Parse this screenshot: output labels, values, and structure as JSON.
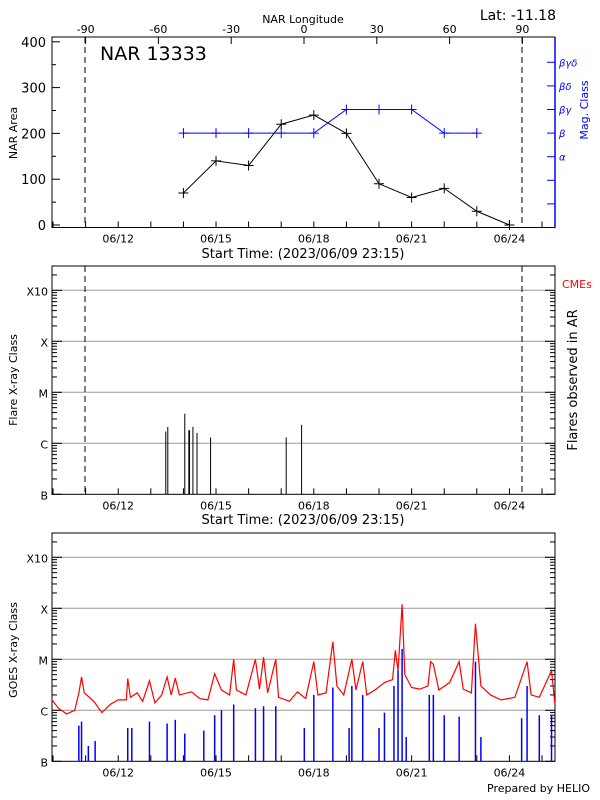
{
  "header": {
    "lat_label": "Lat: -11.18",
    "region_label": "NAR 13333",
    "footer": "Prepared by HELIO"
  },
  "colors": {
    "area": "#000000",
    "mag_class": "#0000ff",
    "goes_long": "#ff0000",
    "goes_short": "#0000ff",
    "cme": "#ff0000",
    "grid": "#999999"
  },
  "chart_data": [
    {
      "type": "line",
      "title": "NAR 13333",
      "xlabel": "Start Time: (2023/06/09 23:15)",
      "ylabel": "NAR Area",
      "y2label": "Mag. Class",
      "top_axis_label": "NAR Longitude",
      "top_axis_ticks": [
        "-90",
        "-60",
        "-30",
        "0",
        "30",
        "60",
        "90"
      ],
      "longitude_limb_markers": [
        "-90",
        "90"
      ],
      "x_range": [
        "06/09 23:15",
        "06/25 09:40"
      ],
      "x_tick_labels": [
        "06/12",
        "06/15",
        "06/18",
        "06/21",
        "06/24"
      ],
      "ylim": [
        -5,
        410
      ],
      "y_ticks": [
        "0",
        "100",
        "200",
        "300",
        "400"
      ],
      "y2_ticks": [
        "",
        "",
        "α",
        "β",
        "βγ",
        "βδ",
        "βγδ"
      ],
      "series": [
        {
          "name": "NAR Area",
          "x": [
            "06/14",
            "06/15",
            "06/16",
            "06/17",
            "06/18",
            "06/19",
            "06/20",
            "06/21",
            "06/22",
            "06/23",
            "06/24"
          ],
          "values": [
            70,
            140,
            130,
            220,
            240,
            200,
            90,
            60,
            80,
            30,
            0
          ]
        },
        {
          "name": "Mag. Class",
          "x": [
            "06/14",
            "06/15",
            "06/16",
            "06/17",
            "06/18",
            "06/19",
            "06/20",
            "06/21",
            "06/22",
            "06/23"
          ],
          "values": [
            "β",
            "β",
            "β",
            "β",
            "β",
            "βγ",
            "βγ",
            "βγ",
            "β",
            "β"
          ]
        }
      ]
    },
    {
      "type": "bar",
      "xlabel": "Start Time: (2023/06/09 23:15)",
      "ylabel": "Flare X-ray Class",
      "y2label": "Flares observed in AR",
      "cme_label": "CMEs",
      "y_scale": "log",
      "y_ticks": [
        "B",
        "C",
        "M",
        "X",
        "X10"
      ],
      "x_tick_labels": [
        "06/12",
        "06/15",
        "06/18",
        "06/21",
        "06/24"
      ],
      "grid": true,
      "flares": [
        [
          "06/13 11:00",
          "C1.7"
        ],
        [
          "06/13 12:30",
          "C2.1"
        ],
        [
          "06/14 01:00",
          "C3.8"
        ],
        [
          "06/14 04:00",
          "C1.8"
        ],
        [
          "06/14 04:30",
          "C1.8"
        ],
        [
          "06/14 07:00",
          "C2.1"
        ],
        [
          "06/14 10:00",
          "C1.6"
        ],
        [
          "06/14 20:00",
          "C1.3"
        ],
        [
          "06/17 03:40",
          "C1.3"
        ],
        [
          "06/17 15:00",
          "C2.3"
        ]
      ]
    },
    {
      "type": "line",
      "xlabel": "",
      "ylabel": "GOES X-ray Class",
      "y_scale": "log",
      "y_ticks": [
        "B",
        "C",
        "M",
        "X",
        "X10"
      ],
      "x_tick_labels": [
        "06/12",
        "06/15",
        "06/18",
        "06/21",
        "06/24"
      ],
      "grid": true,
      "series": [
        {
          "channel": "long",
          "points": [
            [
              "06/09 23:15",
              "C1.6"
            ],
            [
              "06/10 04:00",
              "C1.1"
            ],
            [
              "06/10 10:00",
              "B8.5"
            ],
            [
              "06/10 16:00",
              "C1.0"
            ],
            [
              "06/10 19:00",
              "C2.2"
            ],
            [
              "06/10 21:00",
              "C4.5"
            ],
            [
              "06/10 23:00",
              "C2.2"
            ],
            [
              "06/11 06:00",
              "C1.5"
            ],
            [
              "06/11 12:00",
              "B9"
            ],
            [
              "06/11 18:00",
              "C1.3"
            ],
            [
              "06/12 00:00",
              "C1.6"
            ],
            [
              "06/12 06:00",
              "C1.6"
            ],
            [
              "06/12 07:00",
              "C4.2"
            ],
            [
              "06/12 09:00",
              "C1.8"
            ],
            [
              "06/12 14:00",
              "C2.2"
            ],
            [
              "06/12 18:00",
              "C1.5"
            ],
            [
              "06/12 23:00",
              "C3.8"
            ],
            [
              "06/13 03:00",
              "C1.4"
            ],
            [
              "06/13 08:00",
              "C2"
            ],
            [
              "06/13 12:00",
              "C4.5"
            ],
            [
              "06/13 15:00",
              "C2"
            ],
            [
              "06/13 18:00",
              "C4.3"
            ],
            [
              "06/13 21:00",
              "C2"
            ],
            [
              "06/14 06:00",
              "C2.3"
            ],
            [
              "06/14 12:00",
              "C1.7"
            ],
            [
              "06/14 18:00",
              "C1.6"
            ],
            [
              "06/14 23:00",
              "C5.2"
            ],
            [
              "06/15 04:00",
              "C2.5"
            ],
            [
              "06/15 10:00",
              "C2"
            ],
            [
              "06/15 13:00",
              "M1.0"
            ],
            [
              "06/15 15:00",
              "C2.5"
            ],
            [
              "06/15 22:00",
              "C2.0"
            ],
            [
              "06/16 05:00",
              "M1.0"
            ],
            [
              "06/16 08:00",
              "C2.6"
            ],
            [
              "06/16 11:00",
              "M1.1"
            ],
            [
              "06/16 14:00",
              "C2.2"
            ],
            [
              "06/16 20:00",
              "M1.0"
            ],
            [
              "06/16 22:00",
              "C1.8"
            ],
            [
              "06/17 06:00",
              "C1.5"
            ],
            [
              "06/17 12:00",
              "C2.3"
            ],
            [
              "06/17 18:00",
              "C1.7"
            ],
            [
              "06/18 00:00",
              "C9"
            ],
            [
              "06/18 03:00",
              "C2"
            ],
            [
              "06/18 09:00",
              "C2.2"
            ],
            [
              "06/18 14:00",
              "M2.2"
            ],
            [
              "06/18 17:00",
              "C3"
            ],
            [
              "06/18 22:00",
              "C2"
            ],
            [
              "06/19 04:00",
              "M1.0"
            ],
            [
              "06/19 07:00",
              "C2.5"
            ],
            [
              "06/19 12:00",
              "C9"
            ],
            [
              "06/19 15:00",
              "C2"
            ],
            [
              "06/19 21:00",
              "C2.5"
            ],
            [
              "06/20 04:00",
              "C3.5"
            ],
            [
              "06/20 10:00",
              "C4"
            ],
            [
              "06/20 12:00",
              "M1.5"
            ],
            [
              "06/20 14:00",
              "C6"
            ],
            [
              "06/20 17:00",
              "X1.2"
            ],
            [
              "06/20 19:00",
              "C5"
            ],
            [
              "06/21 00:00",
              "C2.8"
            ],
            [
              "06/21 06:00",
              "C2.6"
            ],
            [
              "06/21 12:00",
              "C3"
            ],
            [
              "06/21 14:00",
              "C9"
            ],
            [
              "06/21 16:00",
              "C8"
            ],
            [
              "06/21 20:00",
              "C2.5"
            ],
            [
              "06/22 04:00",
              "C3.5"
            ],
            [
              "06/22 11:00",
              "C9"
            ],
            [
              "06/22 14:00",
              "C2.6"
            ],
            [
              "06/22 20:00",
              "C2.2"
            ],
            [
              "06/22 23:00",
              "M5"
            ],
            [
              "06/23 03:00",
              "C3"
            ],
            [
              "06/23 10:00",
              "C2"
            ],
            [
              "06/23 18:00",
              "C1.6"
            ],
            [
              "06/24 04:00",
              "C1.8"
            ],
            [
              "06/24 13:00",
              "C9"
            ],
            [
              "06/24 16:00",
              "C2"
            ],
            [
              "06/24 22:00",
              "C1.8"
            ],
            [
              "06/25 07:00",
              "C6"
            ],
            [
              "06/25 09:30",
              "C1.3"
            ]
          ]
        },
        {
          "channel": "short",
          "points": [
            [
              "06/10 19:00",
              "B5"
            ],
            [
              "06/10 21:00",
              "B6"
            ],
            [
              "06/11 02:00",
              "B2"
            ],
            [
              "06/11 07:00",
              "B2.5"
            ],
            [
              "06/12 07:00",
              "B4.5"
            ],
            [
              "06/12 10:00",
              "B4.5"
            ],
            [
              "06/12 23:00",
              "B6"
            ],
            [
              "06/13 12:00",
              "B5.5"
            ],
            [
              "06/13 18:00",
              "B6.5"
            ],
            [
              "06/14 01:00",
              "B3.5"
            ],
            [
              "06/14 15:00",
              "B4"
            ],
            [
              "06/14 23:00",
              "B8"
            ],
            [
              "06/15 04:00",
              "C1"
            ],
            [
              "06/15 13:00",
              "C1.3"
            ],
            [
              "06/16 05:00",
              "C1.1"
            ],
            [
              "06/16 11:00",
              "C1.2"
            ],
            [
              "06/16 20:00",
              "C1.2"
            ],
            [
              "06/17 17:00",
              "B4.5"
            ],
            [
              "06/18 00:00",
              "C2"
            ],
            [
              "06/18 14:00",
              "C2.8"
            ],
            [
              "06/19 02:00",
              "B4.5"
            ],
            [
              "06/19 04:00",
              "C3"
            ],
            [
              "06/19 12:00",
              "C2"
            ],
            [
              "06/20 00:00",
              "B4.5"
            ],
            [
              "06/20 04:00",
              "B9"
            ],
            [
              "06/20 11:00",
              "C3"
            ],
            [
              "06/20 14:00",
              "C6"
            ],
            [
              "06/20 17:00",
              "M1.6"
            ],
            [
              "06/20 20:00",
              "B3"
            ],
            [
              "06/21 13:00",
              "C2"
            ],
            [
              "06/21 16:00",
              "C2"
            ],
            [
              "06/22 00:00",
              "B8"
            ],
            [
              "06/22 11:00",
              "B7.5"
            ],
            [
              "06/22 23:00",
              "M0.9"
            ],
            [
              "06/23 03:00",
              "B3"
            ],
            [
              "06/24 09:00",
              "B7"
            ],
            [
              "06/24 13:00",
              "C3"
            ],
            [
              "06/24 22:00",
              "B8"
            ],
            [
              "06/25 07:00",
              "B8"
            ]
          ]
        }
      ]
    }
  ]
}
